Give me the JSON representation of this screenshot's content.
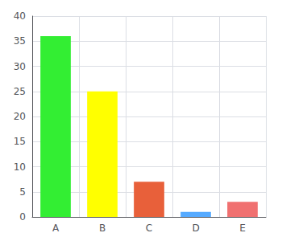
{
  "chart_data": {
    "type": "bar",
    "categories": [
      "A",
      "B",
      "C",
      "D",
      "E"
    ],
    "values": [
      36,
      25,
      7,
      1,
      3
    ],
    "colors": [
      "#33ee33",
      "#ffff00",
      "#e8603a",
      "#55aaff",
      "#f07070"
    ],
    "ylim": [
      0,
      40
    ],
    "yticks": [
      0,
      5,
      10,
      15,
      20,
      25,
      30,
      35,
      40
    ],
    "grid": true
  }
}
